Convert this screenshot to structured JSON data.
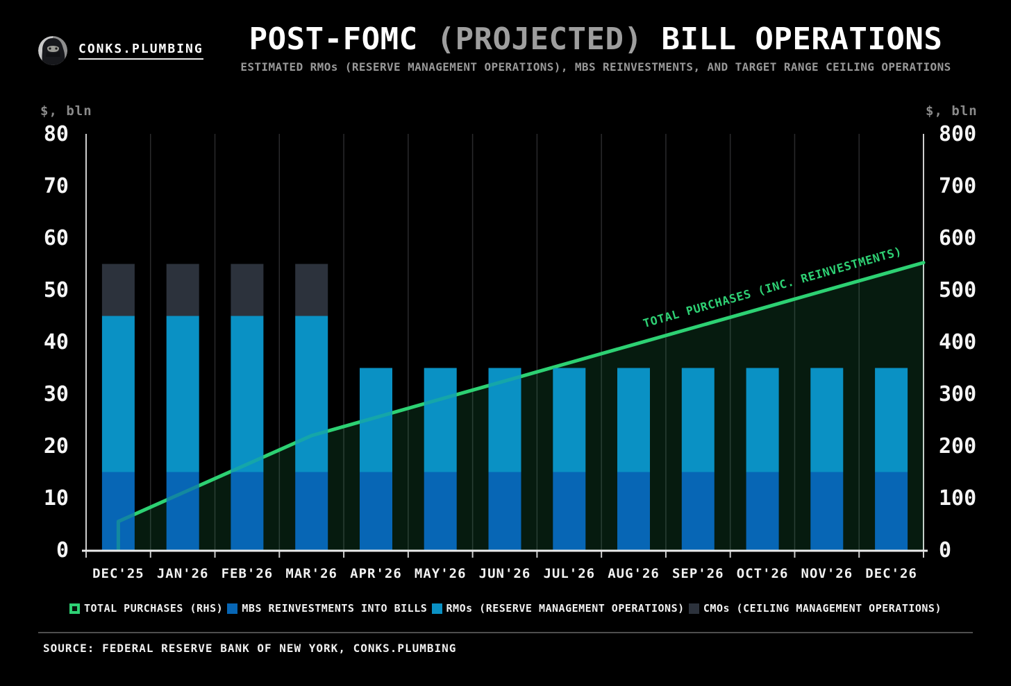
{
  "header": {
    "brand": "CONKS.PLUMBING",
    "title_left": "POST-FOMC ",
    "title_projected": "(PROJECTED)",
    "title_right": " BILL OPERATIONS",
    "subtitle": "ESTIMATED RMOs (RESERVE MANAGEMENT OPERATIONS), MBS REINVESTMENTS, AND TARGET RANGE CEILING OPERATIONS"
  },
  "chart_data": {
    "type": "bar",
    "categories": [
      "DEC'25",
      "JAN'26",
      "FEB'26",
      "MAR'26",
      "APR'26",
      "MAY'26",
      "JUN'26",
      "JUL'26",
      "AUG'26",
      "SEP'26",
      "OCT'26",
      "NOV'26",
      "DEC'26"
    ],
    "series": [
      {
        "name": "MBS REINVESTMENTS INTO BILLS",
        "axis": "left",
        "color": "#0766b5",
        "values": [
          15,
          15,
          15,
          15,
          15,
          15,
          15,
          15,
          15,
          15,
          15,
          15,
          15
        ]
      },
      {
        "name": "RMOs (RESERVE MANAGEMENT OPERATIONS)",
        "axis": "left",
        "color": "#0a91c4",
        "values": [
          30,
          30,
          30,
          30,
          20,
          20,
          20,
          20,
          20,
          20,
          20,
          20,
          20
        ]
      },
      {
        "name": "CMOs (CEILING MANAGEMENT OPERATIONS)",
        "axis": "left",
        "color": "#2c323c",
        "values": [
          10,
          10,
          10,
          10,
          0,
          0,
          0,
          0,
          0,
          0,
          0,
          0,
          0
        ]
      }
    ],
    "line_series": {
      "name": "TOTAL PURCHASES (INC. REINVESTMENTS)",
      "axis": "right",
      "color": "#2ed174",
      "area_fill": "rgba(46,209,115,0.13)",
      "starts_from_zero": true,
      "values": [
        55,
        110,
        165,
        220,
        255,
        290,
        325,
        360,
        395,
        430,
        465,
        500,
        535
      ],
      "extends_to_plot_edge": true,
      "end_value_at_edge": 552.5
    },
    "line_label": "TOTAL PURCHASES (INC. REINVESTMENTS)",
    "left_axis": {
      "title": "$, bln",
      "min": 0,
      "max": 80,
      "ticks": [
        0,
        10,
        20,
        30,
        40,
        50,
        60,
        70,
        80
      ]
    },
    "right_axis": {
      "title": "$, bln",
      "min": 0,
      "max": 800,
      "ticks": [
        0,
        100,
        200,
        300,
        400,
        500,
        600,
        700,
        800
      ]
    },
    "grid": "vertical-only",
    "legend_position": "bottom"
  },
  "legend": {
    "items": [
      {
        "label": "TOTAL PURCHASES (RHS)",
        "color": "#2ed174",
        "marker": "line-marker"
      },
      {
        "label": "MBS REINVESTMENTS INTO BILLS",
        "color": "#0766b5",
        "marker": "square"
      },
      {
        "label": "RMOs (RESERVE MANAGEMENT OPERATIONS)",
        "color": "#0a91c4",
        "marker": "square"
      },
      {
        "label": "CMOs (CEILING MANAGEMENT OPERATIONS)",
        "color": "#2c323c",
        "marker": "square"
      }
    ]
  },
  "footer": {
    "source": "SOURCE: FEDERAL RESERVE BANK OF NEW YORK, CONKS.PLUMBING"
  }
}
